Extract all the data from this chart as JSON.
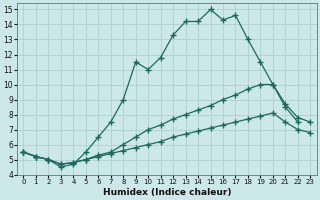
{
  "xlabel": "Humidex (Indice chaleur)",
  "bg_color": "#cce8e8",
  "grid_color": "#aacccc",
  "line_color": "#1a6b5e",
  "xlim": [
    -0.5,
    23.5
  ],
  "ylim": [
    4,
    15.4
  ],
  "xticks": [
    0,
    1,
    2,
    3,
    4,
    5,
    6,
    7,
    8,
    9,
    10,
    11,
    12,
    13,
    14,
    15,
    16,
    17,
    18,
    19,
    20,
    21,
    22,
    23
  ],
  "yticks": [
    4,
    5,
    6,
    7,
    8,
    9,
    10,
    11,
    12,
    13,
    14,
    15
  ],
  "series1_x": [
    0,
    1,
    2,
    3,
    4,
    5,
    6,
    7,
    8,
    9,
    10,
    11,
    12,
    13,
    14,
    15,
    16,
    17,
    18,
    19,
    20,
    21,
    22
  ],
  "series1_y": [
    5.5,
    5.2,
    5.0,
    4.5,
    4.7,
    5.5,
    6.5,
    7.5,
    9.0,
    11.5,
    11.0,
    11.8,
    13.3,
    14.2,
    14.2,
    15.0,
    14.3,
    14.6,
    13.0,
    11.5,
    10.0,
    8.5,
    7.5
  ],
  "series2_x": [
    0,
    1,
    2,
    3,
    4,
    5,
    6,
    7,
    8,
    9,
    10,
    11,
    12,
    13,
    14,
    15,
    16,
    17,
    18,
    19,
    20,
    21,
    22,
    23
  ],
  "series2_y": [
    5.5,
    5.2,
    5.0,
    4.7,
    4.8,
    5.0,
    5.3,
    5.5,
    6.0,
    6.5,
    7.0,
    7.3,
    7.7,
    8.0,
    8.3,
    8.6,
    9.0,
    9.3,
    9.7,
    10.0,
    10.0,
    8.7,
    7.8,
    7.5
  ],
  "series3_x": [
    0,
    1,
    2,
    3,
    4,
    5,
    6,
    7,
    8,
    9,
    10,
    11,
    12,
    13,
    14,
    15,
    16,
    17,
    18,
    19,
    20,
    21,
    22,
    23
  ],
  "series3_y": [
    5.5,
    5.2,
    5.0,
    4.7,
    4.8,
    5.0,
    5.2,
    5.4,
    5.6,
    5.8,
    6.0,
    6.2,
    6.5,
    6.7,
    6.9,
    7.1,
    7.3,
    7.5,
    7.7,
    7.9,
    8.1,
    7.5,
    7.0,
    6.8
  ]
}
